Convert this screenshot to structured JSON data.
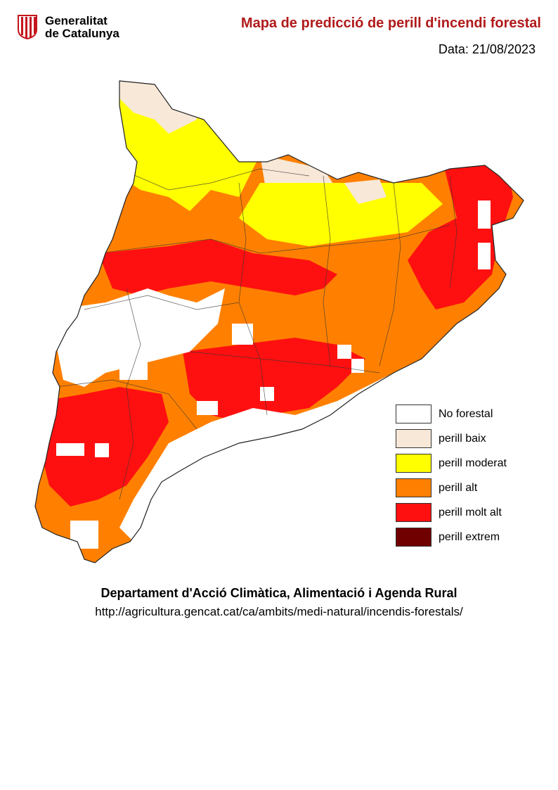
{
  "header": {
    "logo_line1": "Generalitat",
    "logo_line2": "de Catalunya",
    "title": "Mapa de predicció de perill d'incendi forestal",
    "date": "Data: 21/08/2023"
  },
  "legend": [
    {
      "label": "No forestal",
      "color": "#ffffff"
    },
    {
      "label": "perill baix",
      "color": "#f8e8d8"
    },
    {
      "label": "perill moderat",
      "color": "#ffff00"
    },
    {
      "label": "perill alt",
      "color": "#ff8000"
    },
    {
      "label": "perill molt alt",
      "color": "#ff1010"
    },
    {
      "label": "perill extrem",
      "color": "#700000"
    }
  ],
  "footer": {
    "department": "Departament d'Acció Climàtica, Alimentació i Agenda Rural",
    "url": "http://agricultura.gencat.cat/ca/ambits/medi-natural/incendis-forestals/"
  }
}
